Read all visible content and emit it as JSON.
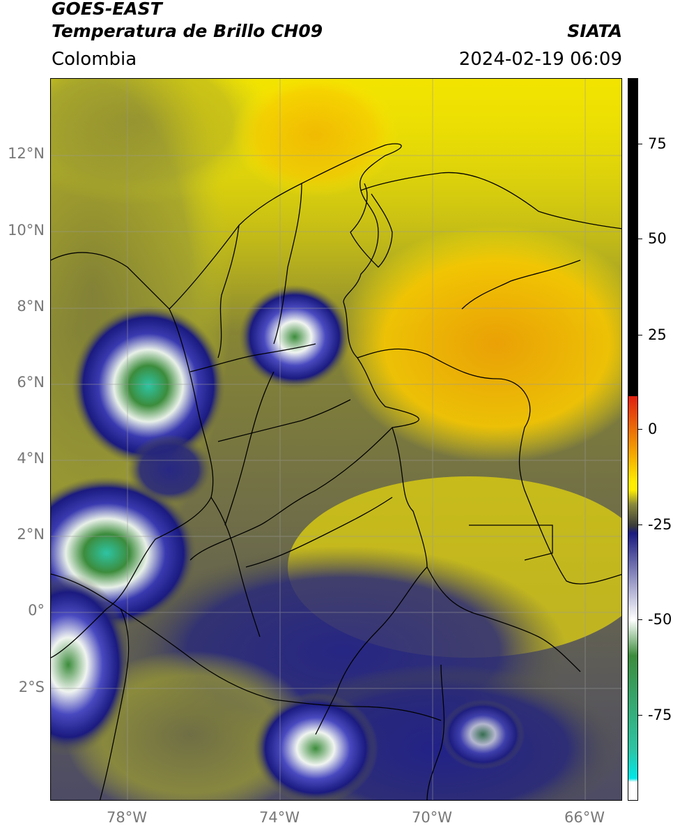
{
  "header": {
    "satellite": "GOES-EAST",
    "product": "Temperatura de Brillo CH09",
    "region": "Colombia",
    "source": "SIATA",
    "datetime": "2024-02-19 06:09"
  },
  "map": {
    "lat_ticks": [
      "12°N",
      "10°N",
      "8°N",
      "6°N",
      "4°N",
      "2°N",
      "0°",
      "2°S"
    ],
    "lon_ticks": [
      "78°W",
      "74°W",
      "70°W",
      "66°W"
    ],
    "extent": {
      "lon_min": -80.0,
      "lon_max": -65.0,
      "lat_min": -5.0,
      "lat_max": 14.0
    },
    "colors": {
      "warm_orange": "#f5a800",
      "yellow": "#ffee00",
      "olive": "#8a8a3a",
      "dark_blue": "#1a1a80",
      "white": "#ffffff",
      "green": "#3c8c3c",
      "teal": "#2ec4a4",
      "black": "#000000",
      "red": "#e02010"
    }
  },
  "colorbar": {
    "ticks": [
      "75",
      "50",
      "25",
      "0",
      "-25",
      "-50",
      "-75"
    ],
    "range": [
      -97,
      90
    ]
  }
}
